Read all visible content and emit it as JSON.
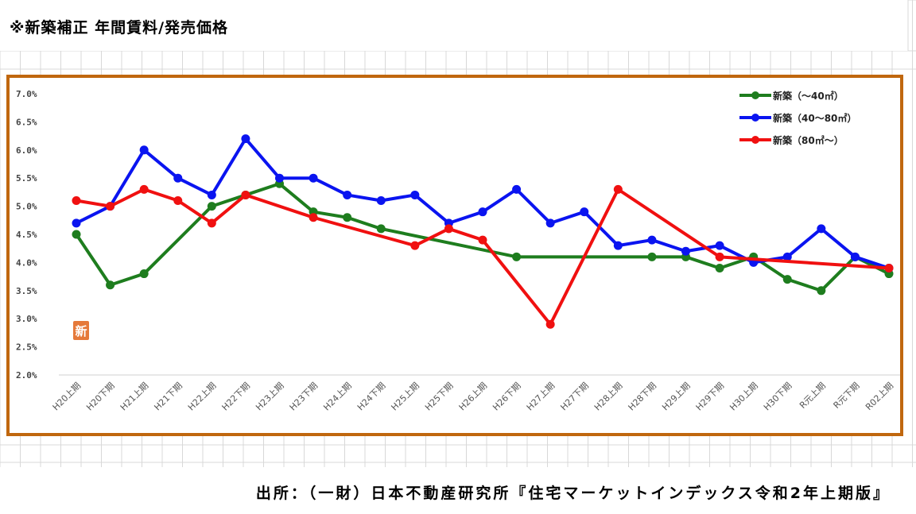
{
  "title": "※新築補正 年間賃料/発売価格",
  "source": "出所：（一財）日本不動産研究所『住宅マーケットインデックス令和2年上期版』",
  "badge": "新",
  "chart_data": {
    "type": "line",
    "categories": [
      "H20上期",
      "H20下期",
      "H21上期",
      "H21下期",
      "H22上期",
      "H22下期",
      "H23上期",
      "H23下期",
      "H24上期",
      "H24下期",
      "H25上期",
      "H25下期",
      "H26上期",
      "H26下期",
      "H27上期",
      "H27下期",
      "H28上期",
      "H28下期",
      "H29上期",
      "H29下期",
      "H30上期",
      "H30下期",
      "R元上期",
      "R元下期",
      "R02上期"
    ],
    "ylim": [
      2.0,
      7.0
    ],
    "yticks": [
      "2.0%",
      "2.5%",
      "3.0%",
      "3.5%",
      "4.0%",
      "4.5%",
      "5.0%",
      "5.5%",
      "6.0%",
      "6.5%",
      "7.0%"
    ],
    "grid": "horizontal",
    "legend_position": "top-right",
    "series": [
      {
        "name": "新築（～40㎡）",
        "color": "#1e7d1e",
        "values": [
          4.5,
          3.6,
          3.8,
          null,
          5.0,
          5.2,
          5.4,
          4.9,
          4.8,
          4.6,
          null,
          null,
          null,
          4.1,
          null,
          null,
          null,
          4.1,
          4.1,
          3.9,
          4.1,
          3.7,
          3.5,
          4.1,
          3.8
        ]
      },
      {
        "name": "新築（40～80㎡）",
        "color": "#0a14f0",
        "values": [
          4.7,
          5.0,
          6.0,
          5.5,
          5.2,
          6.2,
          5.5,
          5.5,
          5.2,
          5.1,
          5.2,
          4.7,
          4.9,
          5.3,
          4.7,
          4.9,
          4.3,
          4.4,
          4.2,
          4.3,
          4.0,
          4.1,
          4.6,
          4.1,
          3.9
        ]
      },
      {
        "name": "新築（80㎡～）",
        "color": "#f01010",
        "values": [
          5.1,
          5.0,
          5.3,
          5.1,
          4.7,
          5.2,
          null,
          4.8,
          null,
          null,
          4.3,
          4.6,
          4.4,
          null,
          2.9,
          null,
          5.3,
          null,
          null,
          4.1,
          null,
          null,
          null,
          null,
          3.9
        ]
      }
    ]
  }
}
